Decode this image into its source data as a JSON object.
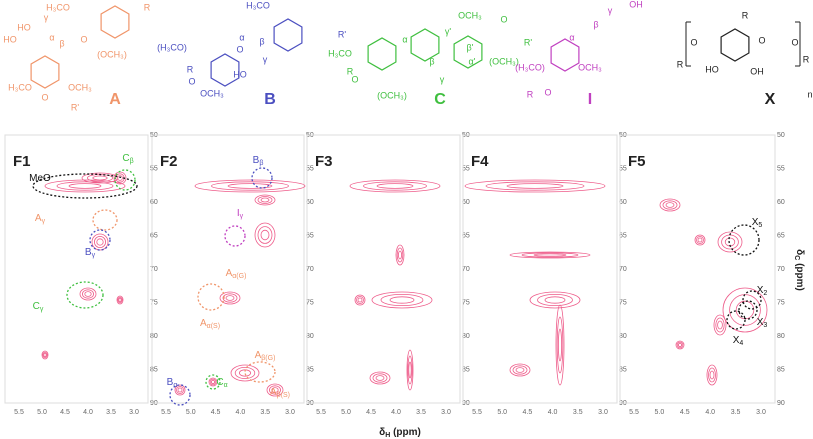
{
  "structures": [
    {
      "label": "A",
      "color": "#f0956a",
      "texts": [
        "HO",
        "H₃CO",
        "R",
        "γ",
        "α",
        "β",
        "O",
        "HO",
        "(OCH₃)",
        "H₃CO",
        "OCH₃",
        "O",
        "R'"
      ]
    },
    {
      "label": "B",
      "color": "#4b4fc0",
      "texts": [
        "H₃CO",
        "(H₃CO)",
        "O",
        "α",
        "β",
        "R'",
        "R",
        "O",
        "γ",
        "HO",
        "OCH₃"
      ]
    },
    {
      "label": "C",
      "color": "#3fbf3f",
      "texts": [
        "OCH₃",
        "O",
        "R'",
        "γ'",
        "β'",
        "α'",
        "H₃CO",
        "α",
        "β",
        "γ",
        "(OCH₃)",
        "R",
        "O",
        "(OCH₃)"
      ]
    },
    {
      "label": "I",
      "color": "#c040c0",
      "texts": [
        "OH",
        "γ",
        "β",
        "α",
        "(H₃CO)",
        "OCH₃",
        "R",
        "O"
      ]
    },
    {
      "label": "X",
      "color": "#222",
      "texts": [
        "O",
        "R",
        "R",
        "O",
        "HO",
        "OH",
        "O",
        "R",
        "n"
      ]
    }
  ],
  "panels": [
    {
      "label": "F1",
      "annotations": [
        {
          "base": "MeO"
        },
        {
          "base": "C",
          "sub": "β"
        },
        {
          "base": "A",
          "sub": "γ"
        },
        {
          "base": "B",
          "sub": "γ"
        },
        {
          "base": "C",
          "sub": "γ"
        }
      ]
    },
    {
      "label": "F2",
      "annotations": [
        {
          "base": "B",
          "sub": "β"
        },
        {
          "base": "I",
          "sub": "γ"
        },
        {
          "base": "A",
          "sub": "α(G)"
        },
        {
          "base": "A",
          "sub": "α(S)"
        },
        {
          "base": "B",
          "sub": "α"
        },
        {
          "base": "C",
          "sub": "α"
        },
        {
          "base": "A",
          "sub": "β(G)"
        },
        {
          "base": "A",
          "sub": "β(S)"
        }
      ]
    },
    {
      "label": "F3",
      "annotations": []
    },
    {
      "label": "F4",
      "annotations": []
    },
    {
      "label": "F5",
      "annotations": [
        {
          "base": "X",
          "sub": "5"
        },
        {
          "base": "X",
          "sub": "2"
        },
        {
          "base": "X",
          "sub": "3"
        },
        {
          "base": "X",
          "sub": "4"
        }
      ]
    }
  ],
  "xticks": [
    "5.5",
    "5.0",
    "4.5",
    "4.0",
    "3.5",
    "3.0"
  ],
  "yticks": [
    "50",
    "55",
    "60",
    "65",
    "70",
    "75",
    "80",
    "85",
    "90"
  ],
  "xlabel": {
    "base": "δ",
    "sub": "H",
    "rest": " (ppm)"
  },
  "ylabel": {
    "base": "δ",
    "sub": "C",
    "rest": " (ppm)"
  }
}
